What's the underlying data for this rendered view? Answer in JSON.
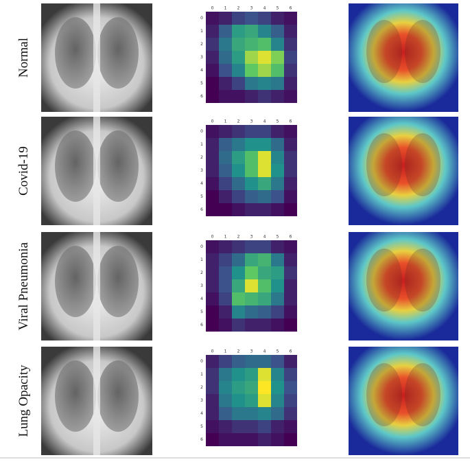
{
  "ticks": [
    0,
    1,
    2,
    3,
    4,
    5,
    6
  ],
  "rows": [
    {
      "label": "Normal",
      "heatmap": [
        [
          0.05,
          0.1,
          0.2,
          0.25,
          0.2,
          0.1,
          0.05
        ],
        [
          0.1,
          0.3,
          0.55,
          0.6,
          0.45,
          0.3,
          0.1
        ],
        [
          0.15,
          0.4,
          0.6,
          0.65,
          0.7,
          0.45,
          0.15
        ],
        [
          0.1,
          0.35,
          0.55,
          0.85,
          0.95,
          0.8,
          0.2
        ],
        [
          0.05,
          0.25,
          0.45,
          0.75,
          0.85,
          0.7,
          0.15
        ],
        [
          0.0,
          0.1,
          0.2,
          0.4,
          0.45,
          0.4,
          0.1
        ],
        [
          0.0,
          0.05,
          0.05,
          0.1,
          0.15,
          0.1,
          0.05
        ]
      ]
    },
    {
      "label": "Covid-19",
      "heatmap": [
        [
          0.05,
          0.1,
          0.15,
          0.2,
          0.2,
          0.1,
          0.05
        ],
        [
          0.1,
          0.3,
          0.4,
          0.5,
          0.5,
          0.35,
          0.1
        ],
        [
          0.1,
          0.35,
          0.55,
          0.7,
          0.95,
          0.45,
          0.15
        ],
        [
          0.1,
          0.3,
          0.5,
          0.7,
          0.95,
          0.5,
          0.15
        ],
        [
          0.05,
          0.2,
          0.35,
          0.5,
          0.6,
          0.4,
          0.1
        ],
        [
          0.0,
          0.1,
          0.2,
          0.3,
          0.35,
          0.25,
          0.05
        ],
        [
          0.0,
          0.0,
          0.05,
          0.1,
          0.1,
          0.05,
          0.0
        ]
      ]
    },
    {
      "label": "Viral Pneumonia",
      "heatmap": [
        [
          0.05,
          0.1,
          0.15,
          0.2,
          0.2,
          0.1,
          0.05
        ],
        [
          0.1,
          0.2,
          0.35,
          0.6,
          0.65,
          0.4,
          0.1
        ],
        [
          0.1,
          0.25,
          0.5,
          0.75,
          0.6,
          0.55,
          0.15
        ],
        [
          0.1,
          0.25,
          0.6,
          0.95,
          0.7,
          0.5,
          0.1
        ],
        [
          0.05,
          0.2,
          0.7,
          0.65,
          0.6,
          0.4,
          0.1
        ],
        [
          0.0,
          0.1,
          0.45,
          0.35,
          0.3,
          0.2,
          0.05
        ],
        [
          0.0,
          0.05,
          0.15,
          0.1,
          0.1,
          0.05,
          0.0
        ]
      ]
    },
    {
      "label": "Lung Opacity",
      "heatmap": [
        [
          0.1,
          0.2,
          0.3,
          0.35,
          0.35,
          0.25,
          0.1
        ],
        [
          0.15,
          0.4,
          0.5,
          0.55,
          0.95,
          0.45,
          0.2
        ],
        [
          0.15,
          0.45,
          0.55,
          0.6,
          1.0,
          0.5,
          0.25
        ],
        [
          0.1,
          0.4,
          0.5,
          0.55,
          0.95,
          0.45,
          0.2
        ],
        [
          0.1,
          0.3,
          0.4,
          0.4,
          0.45,
          0.35,
          0.15
        ],
        [
          0.05,
          0.1,
          0.15,
          0.15,
          0.2,
          0.1,
          0.05
        ],
        [
          0.0,
          0.05,
          0.05,
          0.05,
          0.1,
          0.05,
          0.0
        ]
      ]
    }
  ]
}
